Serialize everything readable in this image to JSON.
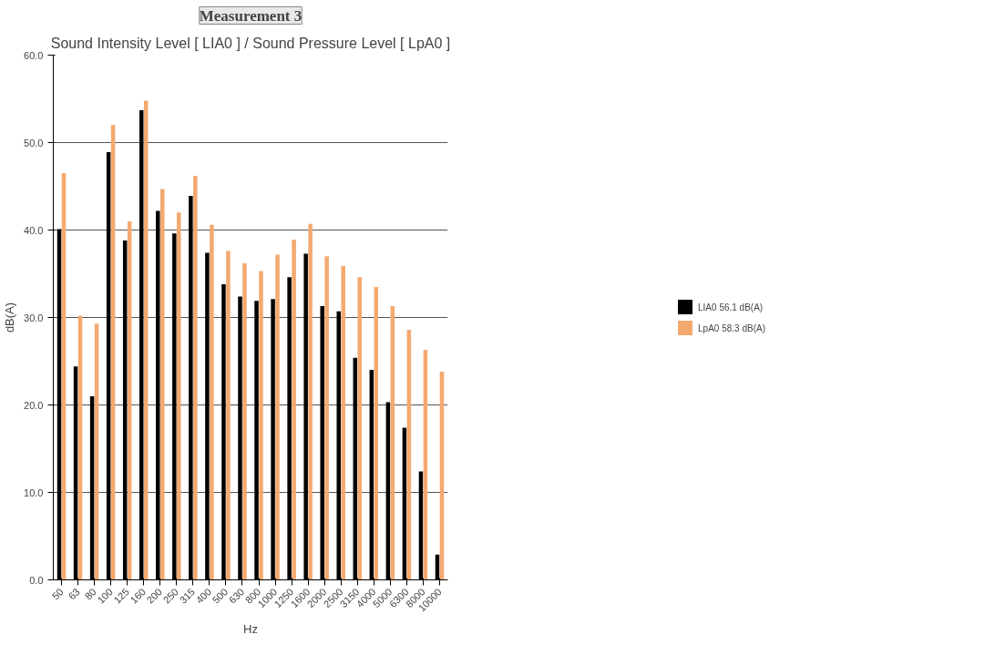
{
  "chart_data": {
    "type": "bar",
    "title": "Measurement 3",
    "subtitle": "Sound Intensity Level [ LIA0 ] / Sound Pressure Level [ LpA0 ]",
    "xlabel": "Hz",
    "ylabel": "dB(A)",
    "categories": [
      "50",
      "63",
      "80",
      "100",
      "125",
      "160",
      "200",
      "250",
      "315",
      "400",
      "500",
      "630",
      "800",
      "1000",
      "1250",
      "1600",
      "2000",
      "2500",
      "3150",
      "4000",
      "5000",
      "6300",
      "8000",
      "10000"
    ],
    "series": [
      {
        "name": "LIA0 56.1 dB(A)",
        "color": "#000000",
        "values": [
          40.1,
          24.4,
          21.0,
          48.9,
          38.8,
          53.7,
          42.2,
          39.6,
          43.9,
          37.4,
          33.8,
          32.4,
          31.9,
          32.1,
          34.6,
          37.3,
          31.3,
          30.7,
          25.4,
          24.0,
          20.3,
          17.4,
          12.4,
          2.9
        ]
      },
      {
        "name": "LpA0 58.3 dB(A)",
        "color": "#f4a970",
        "values": [
          46.5,
          30.2,
          29.3,
          52.0,
          41.0,
          54.8,
          44.7,
          42.0,
          46.2,
          40.6,
          37.6,
          36.2,
          35.3,
          37.2,
          38.9,
          40.7,
          37.0,
          35.9,
          34.6,
          33.5,
          31.3,
          28.6,
          26.3,
          23.8
        ]
      }
    ],
    "ylim": [
      0,
      60
    ],
    "yticks": [
      {
        "value": 0,
        "label": "0.0"
      },
      {
        "value": 10,
        "label": "10.0"
      },
      {
        "value": 20,
        "label": "20.0"
      },
      {
        "value": 30,
        "label": "30.0"
      },
      {
        "value": 40,
        "label": "40.0"
      },
      {
        "value": 50,
        "label": "50.0"
      },
      {
        "value": 60,
        "label": "60.0"
      }
    ],
    "grid": "y",
    "legend": "right"
  }
}
